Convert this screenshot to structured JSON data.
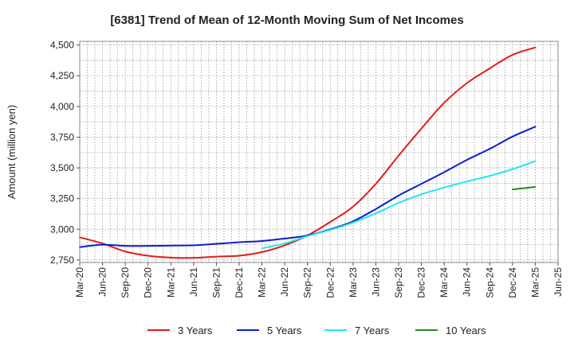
{
  "chart_data": {
    "type": "line",
    "title": "[6381]  Trend of Mean of 12-Month Moving Sum of Net Incomes",
    "xlabel": "",
    "ylabel": "Amount (million yen)",
    "ylim": [
      2730,
      4530
    ],
    "yticks": [
      2750,
      3000,
      3250,
      3500,
      3750,
      4000,
      4250,
      4500
    ],
    "ytick_labels": [
      "2,750",
      "3,000",
      "3,250",
      "3,500",
      "3,750",
      "4,000",
      "4,250",
      "4,500"
    ],
    "x_tick_labels": [
      "Mar-20",
      "Jun-20",
      "Sep-20",
      "Dec-20",
      "Mar-21",
      "Jun-21",
      "Sep-21",
      "Dec-21",
      "Mar-22",
      "Jun-22",
      "Sep-22",
      "Dec-22",
      "Mar-23",
      "Jun-23",
      "Sep-23",
      "Dec-23",
      "Mar-24",
      "Jun-24",
      "Sep-24",
      "Dec-24",
      "Mar-25",
      "Jun-25"
    ],
    "grid": true,
    "legend_position": "bottom",
    "series": [
      {
        "name": "3 Years",
        "color": "#e31a1c",
        "x": [
          "Mar-20",
          "Jun-20",
          "Sep-20",
          "Dec-20",
          "Mar-21",
          "Jun-21",
          "Sep-21",
          "Dec-21",
          "Mar-22",
          "Jun-22",
          "Sep-22",
          "Dec-22",
          "Mar-23",
          "Jun-23",
          "Sep-23",
          "Dec-23",
          "Mar-24",
          "Jun-24",
          "Sep-24",
          "Dec-24",
          "Mar-25"
        ],
        "values": [
          2935,
          2885,
          2820,
          2785,
          2770,
          2768,
          2778,
          2785,
          2815,
          2870,
          2950,
          3060,
          3185,
          3370,
          3600,
          3820,
          4030,
          4190,
          4310,
          4420,
          4480
        ]
      },
      {
        "name": "5 Years",
        "color": "#0a1fcc",
        "x": [
          "Mar-20",
          "Jun-20",
          "Sep-20",
          "Dec-20",
          "Mar-21",
          "Jun-21",
          "Sep-21",
          "Dec-21",
          "Mar-22",
          "Jun-22",
          "Sep-22",
          "Dec-22",
          "Mar-23",
          "Jun-23",
          "Sep-23",
          "Dec-23",
          "Mar-24",
          "Jun-24",
          "Sep-24",
          "Dec-24",
          "Mar-25"
        ],
        "values": [
          2855,
          2875,
          2865,
          2865,
          2868,
          2870,
          2882,
          2895,
          2905,
          2925,
          2950,
          3000,
          3065,
          3165,
          3275,
          3370,
          3465,
          3565,
          3655,
          3755,
          3835
        ]
      },
      {
        "name": "7 Years",
        "color": "#22e8ee",
        "x": [
          "Mar-22",
          "Jun-22",
          "Sep-22",
          "Dec-22",
          "Mar-23",
          "Jun-23",
          "Sep-23",
          "Dec-23",
          "Mar-24",
          "Jun-24",
          "Sep-24",
          "Dec-24",
          "Mar-25"
        ],
        "values": [
          2845,
          2885,
          2945,
          2995,
          3055,
          3130,
          3215,
          3285,
          3340,
          3390,
          3435,
          3490,
          3555
        ]
      },
      {
        "name": "10 Years",
        "color": "#228b22",
        "x": [
          "Dec-24",
          "Mar-25"
        ],
        "values": [
          3325,
          3345
        ]
      }
    ]
  }
}
